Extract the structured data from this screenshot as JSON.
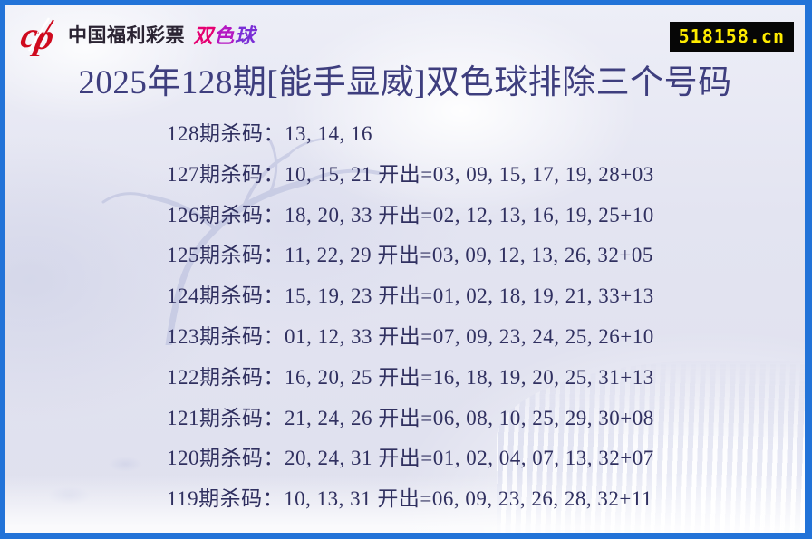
{
  "page": {
    "site_badge": "518158.cn",
    "brand": {
      "logo_icon": "china-welfare-lottery-cp-icon",
      "name": "中国福利彩票",
      "product": "双色球"
    },
    "title": "2025年128期[能手显威]双色球排除三个号码",
    "colors": {
      "border_blue": "#2273d8",
      "background_lavender": "#e3e4f1",
      "title_text": "#3e3e7e",
      "list_text": "#303060",
      "badge_background": "#060606",
      "badge_text": "#ffec00",
      "logo_red": "#cf0a1e",
      "brand_magenta": "#e50072",
      "brand_purple": "#7a2ed6"
    },
    "list": {
      "rows": [
        "128期杀码：13, 14, 16",
        "127期杀码：10, 15, 21 开出=03, 09, 15, 17, 19, 28+03",
        "126期杀码：18, 20, 33 开出=02, 12, 13, 16, 19, 25+10",
        "125期杀码：11, 22, 29 开出=03, 09, 12, 13, 26, 32+05",
        "124期杀码：15, 19, 23 开出=01, 02, 18, 19, 21, 33+13",
        "123期杀码：01, 12, 33 开出=07, 09, 23, 24, 25, 26+10",
        "122期杀码：16, 20, 25 开出=16, 18, 19, 20, 25, 31+13",
        "121期杀码：21, 24, 26 开出=06, 08, 10, 25, 29, 30+08",
        "120期杀码：20, 24, 31 开出=01, 02, 04, 07, 13, 32+07",
        "119期杀码：10, 13, 31 开出=06, 09, 23, 26, 28, 32+11"
      ]
    }
  }
}
